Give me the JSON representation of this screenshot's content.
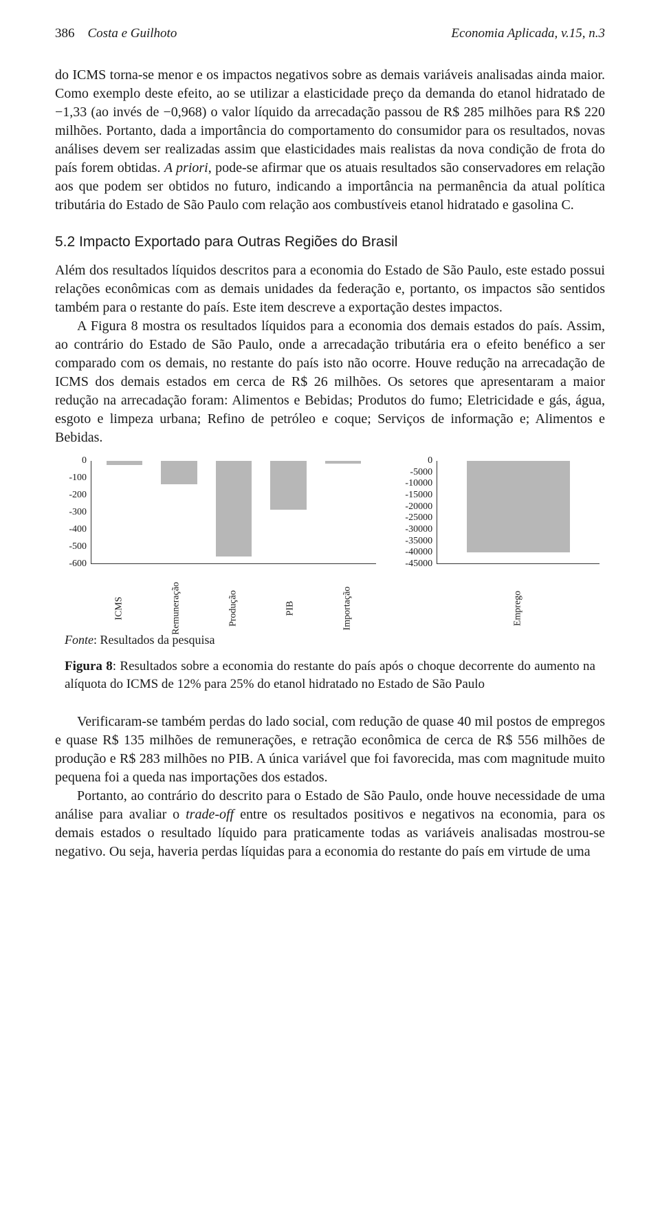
{
  "header": {
    "page_number": "386",
    "authors": "Costa e Guilhoto",
    "journal": "Economia Aplicada, v.15, n.3"
  },
  "para1": "do ICMS torna-se menor e os impactos negativos sobre as demais variáveis analisadas ainda maior. Como exemplo deste efeito, ao se utilizar a elasticidade preço da demanda do etanol hidratado de −1,33 (ao invés de −0,968) o valor líquido da arrecadação passou de R$ 285 milhões para R$ 220 milhões. Portanto, dada a importância do comportamento do consumidor para os resultados, novas análises devem ser realizadas assim que elasticidades mais realistas da nova condição de frota do país forem obtidas. ",
  "para1_apriori": "A priori",
  "para1_cont": ", pode-se afirmar que os atuais resultados são conservadores em relação aos que podem ser obtidos no futuro, indicando a importância na permanência da atual política tributária do Estado de São Paulo com relação aos combustíveis etanol hidratado e gasolina C.",
  "section52": "5.2   Impacto Exportado para Outras Regiões do Brasil",
  "para2": "Além dos resultados líquidos descritos para a economia do Estado de São Paulo, este estado possui relações econômicas com as demais unidades da federação e, portanto, os impactos são sentidos também para o restante do país. Este item descreve a exportação destes impactos.",
  "para3": "A Figura 8 mostra os resultados líquidos para a economia dos demais estados do país. Assim, ao contrário do Estado de São Paulo, onde a arrecadação tributária era o efeito benéfico a ser comparado com os demais, no restante do país isto não ocorre. Houve redução na arrecadação de ICMS dos demais estados em cerca de R$ 26 milhões. Os setores que apresentaram a maior redução na arrecadação foram: Alimentos e Bebidas; Produtos do fumo; Eletricidade e gás, água, esgoto e limpeza urbana; Refino de petróleo e coque; Serviços de informação e; Alimentos e Bebidas.",
  "chart_left": {
    "type": "bar",
    "ylim": [
      -600,
      0
    ],
    "ytick_step": 100,
    "yticks": [
      "0",
      "-100",
      "-200",
      "-300",
      "-400",
      "-500",
      "-600"
    ],
    "categories": [
      "ICMS",
      "Remuneração",
      "Produção",
      "PIB",
      "Importação"
    ],
    "values": [
      -26,
      -135,
      -556,
      -283,
      -15
    ],
    "bar_color": "#b7b7b7",
    "tick_fontsize": 14,
    "axis_fontsize": 14
  },
  "chart_right": {
    "type": "bar",
    "ylim": [
      -45000,
      0
    ],
    "ytick_step": 5000,
    "yticks": [
      "0",
      "-5000",
      "-10000",
      "-15000",
      "-20000",
      "-25000",
      "-30000",
      "-35000",
      "-40000",
      "-45000"
    ],
    "categories": [
      "Emprego"
    ],
    "values": [
      -40000
    ],
    "bar_color": "#b7b7b7",
    "tick_fontsize": 14,
    "axis_fontsize": 14
  },
  "fonte_label": "Fonte",
  "fonte_text": ": Resultados da pesquisa",
  "fig8_label": "Figura 8",
  "fig8_caption": ": Resultados sobre a economia do restante do país após o choque decorrente do aumento na alíquota do ICMS de 12% para 25% do etanol hidratado no Estado de São Paulo",
  "para4a": "Verificaram-se também perdas do lado social, com redução de quase 40 mil postos de empregos e quase R$ 135 milhões de remunerações, e retração econômica de cerca de R$ 556 milhões de produção e R$ 283 milhões no PIB. A única variável que foi favorecida, mas com magnitude muito pequena foi a queda nas importações dos estados.",
  "para5a": "Portanto, ao contrário do descrito para o Estado de São Paulo, onde houve necessidade de uma análise para avaliar o ",
  "para5_tradeoff": "trade-off",
  "para5b": " entre os resultados positivos e negativos na economia, para os demais estados o resultado líquido para praticamente todas as variáveis analisadas mostrou-se negativo. Ou seja, haveria perdas líquidas para a economia do restante do país em virtude de uma"
}
